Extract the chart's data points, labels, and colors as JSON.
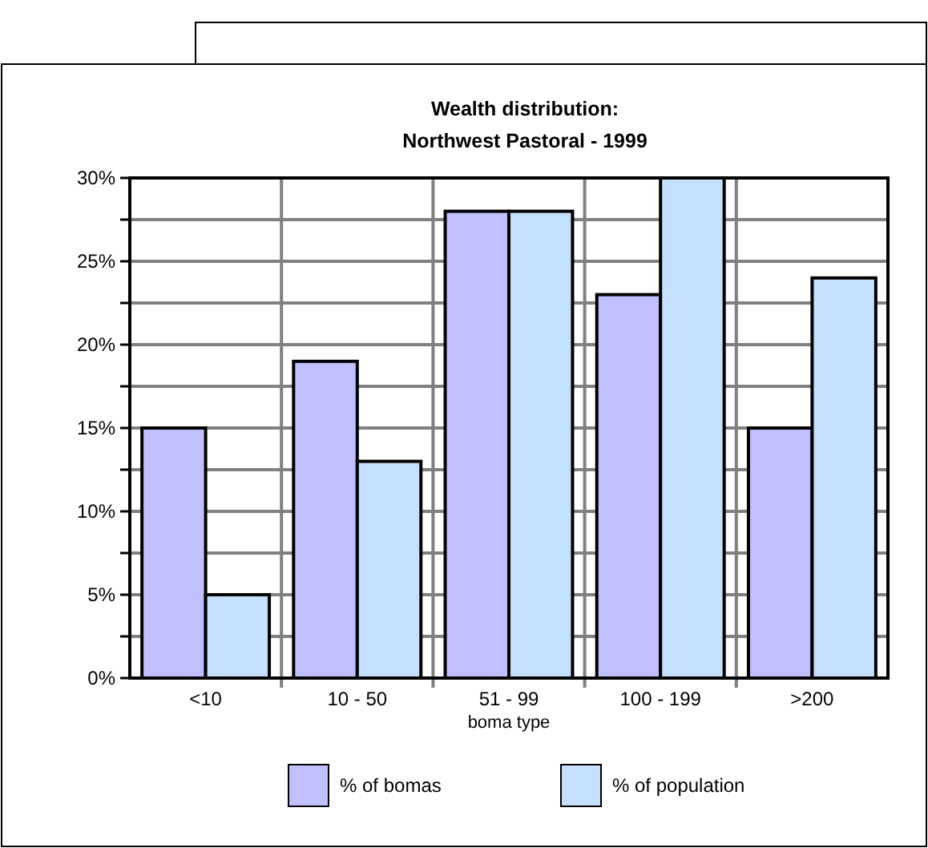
{
  "chart_data": {
    "type": "bar",
    "title": "Wealth distribution:\nNorthwest Pastoral - 1999",
    "xlabel": "boma type",
    "categories": [
      "<10",
      "10 - 50",
      "51 - 99",
      "100 - 199",
      ">200"
    ],
    "series": [
      {
        "name": "% of bomas",
        "color": "#c0c0ff",
        "values": [
          15,
          19,
          28,
          23,
          15
        ]
      },
      {
        "name": "% of population",
        "color": "#c4e0fc",
        "values": [
          5,
          13,
          28,
          30,
          24
        ]
      }
    ],
    "ylim": [
      0,
      30
    ],
    "yticks": [
      {
        "value": 0,
        "label": "0%"
      },
      {
        "value": 2.5,
        "label": null
      },
      {
        "value": 5,
        "label": "5%"
      },
      {
        "value": 7.5,
        "label": null
      },
      {
        "value": 10,
        "label": "10%"
      },
      {
        "value": 12.5,
        "label": null
      },
      {
        "value": 15,
        "label": "15%"
      },
      {
        "value": 17.5,
        "label": null
      },
      {
        "value": 20,
        "label": "20%"
      },
      {
        "value": 22.5,
        "label": null
      },
      {
        "value": 25,
        "label": "25%"
      },
      {
        "value": 27.5,
        "label": null
      },
      {
        "value": 30,
        "label": "30%"
      }
    ],
    "grid": true,
    "legend": "bottom"
  }
}
